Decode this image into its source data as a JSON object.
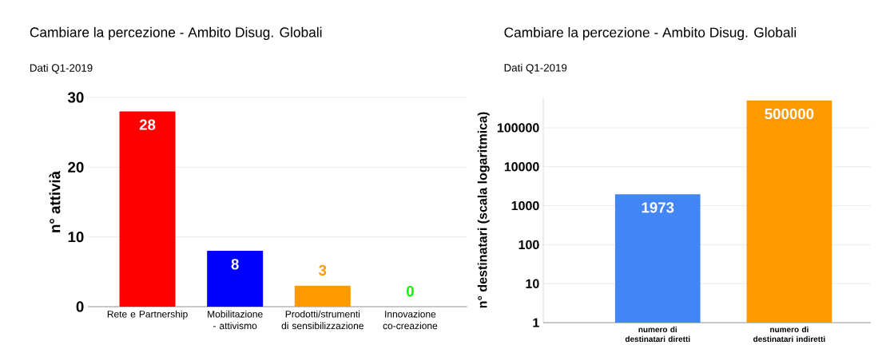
{
  "chart_data": [
    {
      "type": "bar",
      "title": "Cambiare la percezione - Ambito Disug. Globali",
      "subtitle": "Dati Q1-2019",
      "ylabel": "n° attivià",
      "categories": [
        "Rete e Partnership",
        "Mobilitazione - attivismo",
        "Prodotti/strumenti di sensibilizzazione",
        "Innovazione co-creazione"
      ],
      "values": [
        28,
        8,
        3,
        0
      ],
      "colors": [
        "#ff0000",
        "#0000ff",
        "#ff9900",
        "#00ff00"
      ],
      "ylim": [
        0,
        30
      ],
      "yticks": [
        0,
        10,
        20,
        30
      ],
      "grid": "y",
      "data_labels": true
    },
    {
      "type": "bar",
      "title": "Cambiare la percezione - Ambito Disug. Globali",
      "subtitle": "Dati Q1-2019",
      "ylabel": "n° destinatari (scala logaritmica)",
      "categories": [
        "numero di destinatari diretti",
        "numero di destinatari indiretti"
      ],
      "values": [
        1973,
        500000
      ],
      "colors": [
        "#4285f4",
        "#ff9900"
      ],
      "ylim": [
        1,
        600000
      ],
      "yticks": [
        1,
        10,
        100,
        1000,
        10000,
        100000
      ],
      "grid": "y",
      "log": "y",
      "data_labels": true
    }
  ]
}
